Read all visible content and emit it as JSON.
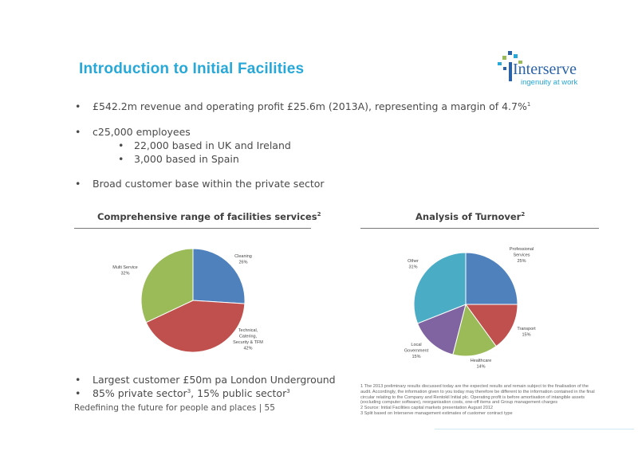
{
  "title": "Introduction to Initial Facilities",
  "logo": {
    "word": "Interserve",
    "tagline": "ingenuity at work"
  },
  "bullets": [
    {
      "text": "£542.2m revenue and operating profit £25.6m (2013A), representing a margin of 4.7%",
      "sup": "1"
    },
    {
      "text": "c25,000 employees"
    },
    {
      "text": "22,000 based in UK and Ireland"
    },
    {
      "text": "3,000 based in Spain"
    },
    {
      "text": "Broad customer base within the private sector"
    }
  ],
  "bottom_bullets": [
    {
      "text": "Largest customer £50m pa London Underground"
    },
    {
      "text": "85% private sector",
      "sup": "3",
      "text2": ", 15%  public sector",
      "sup2": "3"
    }
  ],
  "footer": "Redefining the future for people and places | 55",
  "footnotes": [
    "1  The 2013 preliminary results discussed today are the expected results and remain subject to the finalisation of the audit. Accordingly, the information given to you today may therefore be different to the information contained in the final circular relating to the Company and Rentokil Initial plc. Operating profit is before amortisation of intangible assets (excluding computer software), reorganisation costs, one-off items and Group management charges",
    "2 Source: Initial Facilities capital markets presentation August 2012",
    "3 Split based on Interserve management estimates of customer contract type"
  ],
  "colors": {
    "title": "#27a8d8",
    "blue": "#4f81bd",
    "red": "#c0504d",
    "green": "#9bbb59",
    "purple": "#8064a2",
    "teal": "#4bacc6"
  },
  "chart_data": [
    {
      "type": "pie",
      "title": "Comprehensive range of facilities services",
      "title_sup": "2",
      "slices": [
        {
          "label": [
            "Cleaning",
            "26%"
          ],
          "value": 26,
          "color": "#4f81bd"
        },
        {
          "label": [
            "Technical,",
            "Catering,",
            "Security & TFM",
            "42%"
          ],
          "value": 42,
          "color": "#c0504d"
        },
        {
          "label": [
            "Multi Service",
            "32%"
          ],
          "value": 32,
          "color": "#9bbb59"
        }
      ]
    },
    {
      "type": "pie",
      "title": "Analysis of Turnover",
      "title_sup": "2",
      "slices": [
        {
          "label": [
            "Professional",
            "Services",
            "25%"
          ],
          "value": 25,
          "color": "#4f81bd"
        },
        {
          "label": [
            "Transport",
            "15%"
          ],
          "value": 15,
          "color": "#c0504d"
        },
        {
          "label": [
            "Healthcare",
            "14%"
          ],
          "value": 14,
          "color": "#9bbb59"
        },
        {
          "label": [
            "Local",
            "Government",
            "15%"
          ],
          "value": 15,
          "color": "#8064a2"
        },
        {
          "label": [
            "Other",
            "31%"
          ],
          "value": 31,
          "color": "#4bacc6"
        }
      ]
    }
  ]
}
